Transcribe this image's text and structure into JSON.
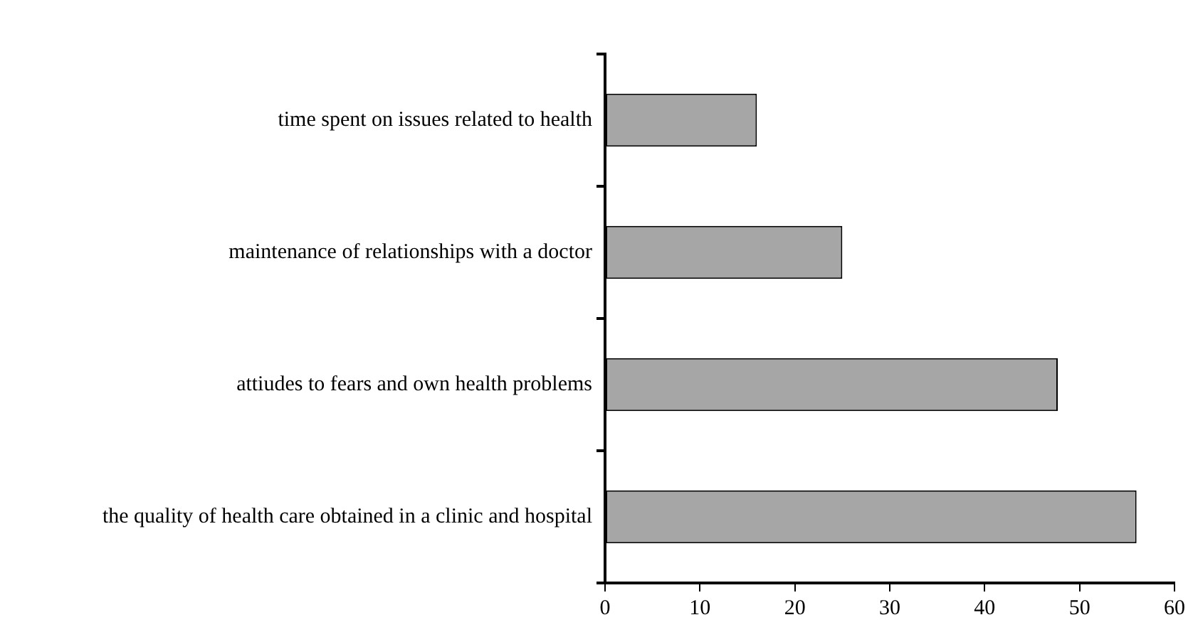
{
  "chart_data": {
    "type": "bar",
    "orientation": "horizontal",
    "categories": [
      "time spent on issues related to health",
      "maintenance of relationships with a doctor",
      "attiudes to fears and own health problems",
      "the quality of health care obtained in a clinic and hospital"
    ],
    "values": [
      16,
      25,
      47.7,
      56
    ],
    "color": "#a6a6a6",
    "xlim": [
      0,
      60
    ],
    "xticks": [
      0,
      10,
      20,
      30,
      40,
      50,
      60
    ],
    "grid": false
  }
}
